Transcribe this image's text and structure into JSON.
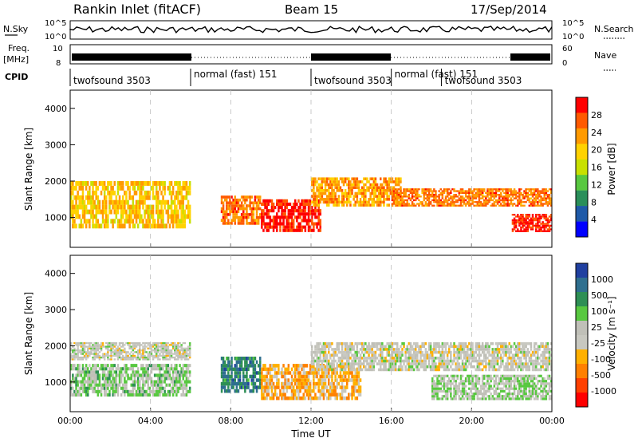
{
  "header": {
    "station": "Rankin Inlet (fitACF)",
    "beam": "Beam 15",
    "date": "17/Sep/2014"
  },
  "status_panel": {
    "nsky_label": "N.Sky",
    "nsky_ticks": [
      "10^5",
      "10^0"
    ],
    "nsearch_label": "N.Search",
    "nsearch_ticks": [
      "10^5",
      "10^0"
    ],
    "freq_label_1": "Freq.",
    "freq_label_2": "[MHz]",
    "freq_ticks": [
      "10",
      "8"
    ],
    "nave_label": "Nave",
    "nave_ticks": [
      "60",
      "0"
    ],
    "cpid_label": "CPID",
    "cpid_segments": [
      {
        "text": "twofsound 3503",
        "start_h": 0.0,
        "end_h": 6.0
      },
      {
        "text": "normal (fast) 151",
        "start_h": 6.0,
        "end_h": 12.0
      },
      {
        "text": "twofsound 3503",
        "start_h": 12.0,
        "end_h": 16.0
      },
      {
        "text": "normal (fast) 151",
        "start_h": 16.0,
        "end_h": 18.5
      },
      {
        "text": "twofsound 3503",
        "start_h": 18.5,
        "end_h": 22.0
      }
    ]
  },
  "colorbars": {
    "power": {
      "label": "Power [dB]",
      "ticks": [
        "28",
        "24",
        "20",
        "16",
        "12",
        "8",
        "4"
      ],
      "colors": [
        "#ff0000",
        "#ff5a00",
        "#ff9a00",
        "#ffd200",
        "#c8e000",
        "#58c840",
        "#2a8f5a",
        "#1f5aa8",
        "#0000ff"
      ]
    },
    "velocity": {
      "label": "Velocity [m s⁻¹]",
      "ticks": [
        "1000",
        "500",
        "100",
        "25",
        "-25",
        "-100",
        "-500",
        "-1000"
      ],
      "colors": [
        "#2040a0",
        "#2f6f8f",
        "#2e8f55",
        "#58c840",
        "#c0c0b8",
        "#c8c8c0",
        "#ffb000",
        "#ff8000",
        "#ff4000",
        "#ff0000"
      ]
    }
  },
  "chart_data": [
    {
      "type": "heatmap",
      "name": "power",
      "ylabel": "Slant Range [km]",
      "xlabel": "Time UT",
      "x_ticks": [
        "00:00",
        "04:00",
        "08:00",
        "12:00",
        "16:00",
        "20:00",
        "00:00"
      ],
      "y_ticks": [
        1000,
        2000,
        3000,
        4000
      ],
      "xlim_h": [
        0,
        24
      ],
      "ylim_km": [
        180,
        4500
      ],
      "band_summary": [
        {
          "start_h": 0.0,
          "end_h": 6.0,
          "range_km": [
            700,
            2000
          ],
          "value_db": 20
        },
        {
          "start_h": 7.5,
          "end_h": 9.5,
          "range_km": [
            800,
            1600
          ],
          "value_db": 24
        },
        {
          "start_h": 9.5,
          "end_h": 12.5,
          "range_km": [
            600,
            1500
          ],
          "value_db": 28
        },
        {
          "start_h": 12.0,
          "end_h": 16.5,
          "range_km": [
            1300,
            2100
          ],
          "value_db": 22
        },
        {
          "start_h": 16.0,
          "end_h": 24.0,
          "range_km": [
            1300,
            1800
          ],
          "value_db": 24
        },
        {
          "start_h": 22.0,
          "end_h": 24.0,
          "range_km": [
            600,
            1100
          ],
          "value_db": 28
        }
      ]
    },
    {
      "type": "heatmap",
      "name": "velocity",
      "ylabel": "Slant Range [km]",
      "xlabel": "Time UT",
      "x_ticks": [
        "00:00",
        "04:00",
        "08:00",
        "12:00",
        "16:00",
        "20:00",
        "00:00"
      ],
      "y_ticks": [
        1000,
        2000,
        3000,
        4000
      ],
      "xlim_h": [
        0,
        24
      ],
      "ylim_km": [
        180,
        4500
      ],
      "band_summary": [
        {
          "start_h": 0.0,
          "end_h": 6.0,
          "range_km": [
            1600,
            2100
          ],
          "value_ms": 0
        },
        {
          "start_h": 0.0,
          "end_h": 6.0,
          "range_km": [
            600,
            1500
          ],
          "value_ms": 200
        },
        {
          "start_h": 7.5,
          "end_h": 9.5,
          "range_km": [
            700,
            1700
          ],
          "value_ms": 600
        },
        {
          "start_h": 9.5,
          "end_h": 14.5,
          "range_km": [
            500,
            1500
          ],
          "value_ms": -300
        },
        {
          "start_h": 12.0,
          "end_h": 24.0,
          "range_km": [
            1300,
            2100
          ],
          "value_ms": 0
        },
        {
          "start_h": 18.0,
          "end_h": 24.0,
          "range_km": [
            500,
            1200
          ],
          "value_ms": 150
        }
      ]
    }
  ]
}
